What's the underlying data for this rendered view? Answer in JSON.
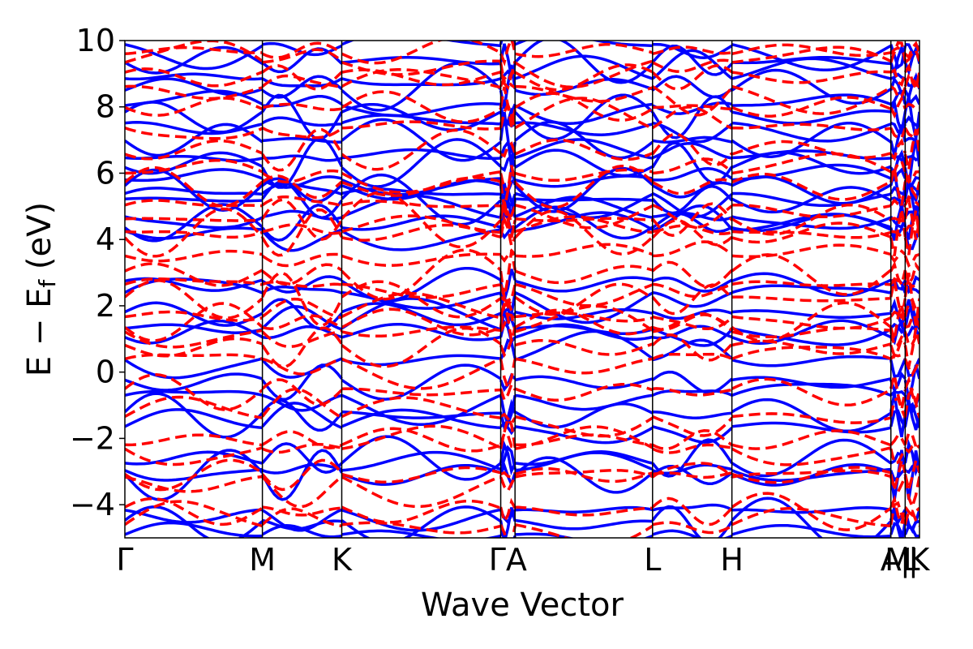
{
  "chart_data": {
    "type": "line",
    "title": "",
    "xlabel": "Wave Vector",
    "ylabel": "E − E_f (eV)",
    "ylabel_main": "E − E",
    "ylabel_sub": "f",
    "ylabel_unit": " (eV)",
    "ylim": [
      -5,
      10
    ],
    "yticks": [
      -4,
      -2,
      0,
      2,
      4,
      6,
      8,
      10
    ],
    "ytick_labels": [
      "−4",
      "−2",
      "0",
      "2",
      "4",
      "6",
      "8",
      "10"
    ],
    "kpath_positions": [
      0,
      0.577,
      0.91,
      1.577,
      1.637,
      2.214,
      2.547,
      3.214,
      3.274,
      3.334
    ],
    "kpath_range": [
      0,
      3.334
    ],
    "high_symmetry_labels": [
      {
        "label": "Γ",
        "k": 0
      },
      {
        "label": "M",
        "k": 0.577
      },
      {
        "label": "K",
        "k": 0.91
      },
      {
        "label": "ΓA",
        "k": 1.607
      },
      {
        "label": "L",
        "k": 2.214
      },
      {
        "label": "H",
        "k": 2.547
      },
      {
        "label": "A",
        "k": 3.214
      },
      {
        "label": "M",
        "k": 3.244
      },
      {
        "label": "|",
        "k": 3.274
      },
      {
        "label": "L",
        "k": 3.3
      },
      {
        "label": "|",
        "k": 3.308
      },
      {
        "label": "K",
        "k": 3.334
      }
    ],
    "grid": false,
    "colors": {
      "spin_up": "#0000ff",
      "spin_down": "#ff0000",
      "frame": "#000000"
    },
    "series": [
      {
        "name": "spin_up_solid",
        "style": "solid",
        "color": "#0000ff",
        "band_edges": [
          -4.9,
          -4.6,
          -4.3,
          -3.1,
          -2.85,
          -2.6,
          -1.6,
          -1.3,
          -0.85,
          -0.3,
          0.45,
          1.2,
          1.4,
          1.75,
          2.25,
          2.65,
          4.3,
          4.5,
          4.8,
          5.2,
          5.25,
          5.5,
          5.8,
          6.3,
          6.6,
          7.0,
          7.4,
          7.7,
          8.0,
          8.6,
          9.0,
          9.4,
          9.8
        ]
      },
      {
        "name": "spin_down_dashed",
        "style": "dashed",
        "color": "#ff0000",
        "band_edges": [
          -4.6,
          -4.2,
          -3.3,
          -3.1,
          -2.2,
          -2.05,
          -1.3,
          -0.6,
          0.25,
          0.75,
          1.3,
          1.5,
          1.75,
          2.2,
          2.5,
          2.95,
          3.55,
          4.2,
          4.35,
          4.6,
          4.9,
          5.6,
          6.0,
          6.7,
          7.5,
          8.0,
          8.5,
          8.9,
          9.3,
          9.7
        ]
      }
    ]
  }
}
